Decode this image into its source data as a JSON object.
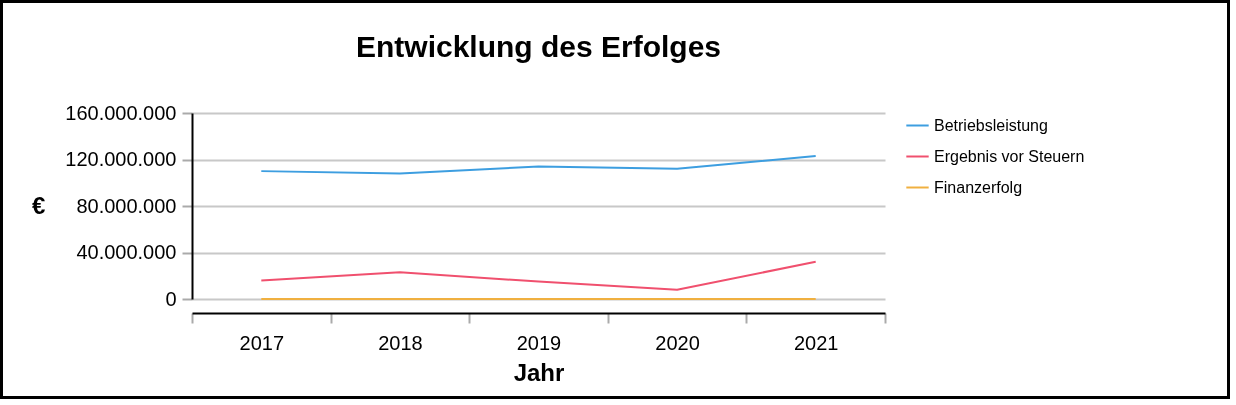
{
  "chart_data": {
    "type": "line",
    "title": "Entwicklung des Erfolges",
    "xlabel": "Jahr",
    "ylabel": "€",
    "categories": [
      "2017",
      "2018",
      "2019",
      "2020",
      "2021"
    ],
    "series": [
      {
        "name": "Betriebsleistung",
        "color": "#3d9ee0",
        "values": [
          110000000,
          108000000,
          114000000,
          112000000,
          123000000
        ]
      },
      {
        "name": "Ergebnis vor Steuern",
        "color": "#f0506e",
        "values": [
          16000000,
          23000000,
          15000000,
          8000000,
          32000000
        ]
      },
      {
        "name": "Finanzerfolg",
        "color": "#f0b040",
        "values": [
          0,
          0,
          0,
          0,
          0
        ]
      }
    ],
    "ylim": [
      0,
      160000000
    ],
    "yticks": [
      0,
      {
        "value": 40000000,
        "label": "40.000.000"
      },
      {
        "value": 80000000,
        "label": "80.000.000"
      },
      {
        "value": 120000000,
        "label": "120.000.000"
      },
      {
        "value": 160000000,
        "label": "160.000.000"
      }
    ],
    "grid": "y",
    "legend": "right",
    "marker": "none",
    "line_style": "solid"
  }
}
